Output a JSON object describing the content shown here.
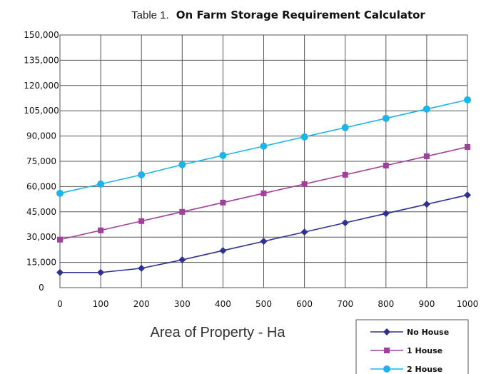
{
  "chart_data": {
    "type": "line",
    "title_prefix": "Table 1.",
    "title": "On Farm Storage Requirement Calculator",
    "xlabel": "Area of Property - Ha",
    "ylabel": "",
    "x": [
      0,
      100,
      200,
      300,
      400,
      500,
      600,
      700,
      800,
      900,
      1000
    ],
    "xlim": [
      0,
      1000
    ],
    "ylim": [
      0,
      150000
    ],
    "yticks": [
      0,
      15000,
      30000,
      45000,
      60000,
      75000,
      90000,
      105000,
      120000,
      135000,
      150000
    ],
    "ytick_labels": [
      "0",
      "15,000",
      "30,000",
      "45,000",
      "60,000",
      "75,000",
      "90,000",
      "105,000",
      "120,000",
      "135,000",
      "150,000"
    ],
    "xtick_labels": [
      "0",
      "100",
      "200",
      "300",
      "400",
      "500",
      "600",
      "700",
      "800",
      "900",
      "1000"
    ],
    "grid": true,
    "legend_position": "bottom-right",
    "series": [
      {
        "name": "No House",
        "color": "#2e3192",
        "marker": "diamond",
        "values": [
          9000,
          9000,
          11500,
          16500,
          22000,
          27500,
          33000,
          38500,
          44000,
          49500,
          55000
        ]
      },
      {
        "name": "1 House",
        "color": "#a0409a",
        "marker": "square",
        "values": [
          28500,
          34000,
          39500,
          45000,
          50500,
          56000,
          61500,
          67000,
          72500,
          78000,
          83500
        ]
      },
      {
        "name": "2 House",
        "color": "#1cb5e8",
        "marker": "circle",
        "values": [
          56000,
          61500,
          67000,
          73000,
          78500,
          84000,
          89500,
          95000,
          100500,
          106000,
          111500
        ]
      }
    ]
  }
}
